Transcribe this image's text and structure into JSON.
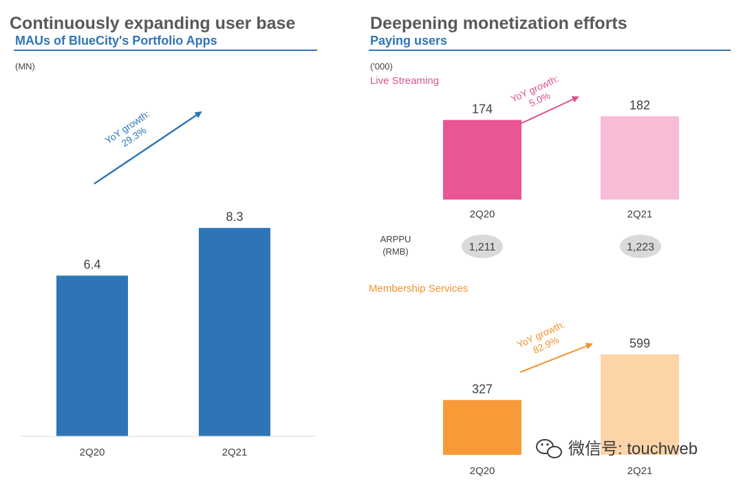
{
  "left": {
    "title": "Continuously expanding user base",
    "subtitle": "MAUs of BlueCity's Portfolio Apps",
    "unit": "(MN)",
    "growth": {
      "line1": "YoY growth:",
      "line2": "29.3%"
    }
  },
  "right": {
    "title": "Deepening monetization efforts",
    "subtitle": "Paying users",
    "unit": "('000)",
    "arppu": {
      "label_line1": "ARPPU",
      "label_line2": "(RMB)",
      "values": [
        "1,211",
        "1,223"
      ]
    },
    "live_growth": {
      "line1": "YoY growth:",
      "line2": "5.0%"
    },
    "member_growth": {
      "line1": "YoY growth:",
      "line2": "82.9%"
    }
  },
  "watermark": "微信号: touchweb",
  "colors": {
    "mau_bar": "#2e75b6",
    "live_2q20": "#ea5594",
    "live_2q21": "#f7bcd6",
    "member_2q20": "#f89a38",
    "member_2q21": "#fcd4a8",
    "live_text": "#e0508f",
    "member_text": "#f0922e",
    "blue_text": "#2e75b6"
  },
  "chart_data": [
    {
      "type": "bar",
      "title": "MAUs of BlueCity's Portfolio Apps",
      "ylabel": "(MN)",
      "categories": [
        "2Q20",
        "2Q21"
      ],
      "values": [
        6.4,
        8.3
      ],
      "value_labels": [
        "6.4",
        "8.3"
      ],
      "ylim": [
        0,
        10
      ],
      "annotation": "YoY growth: 29.3%"
    },
    {
      "type": "bar",
      "title": "Live Streaming",
      "ylabel": "('000)",
      "categories": [
        "2Q20",
        "2Q21"
      ],
      "values": [
        174,
        182
      ],
      "value_labels": [
        "174",
        "182"
      ],
      "annotation": "YoY growth: 5.0%"
    },
    {
      "type": "bar",
      "title": "Membership Services",
      "ylabel": "('000)",
      "categories": [
        "2Q20",
        "2Q21"
      ],
      "values": [
        327,
        599
      ],
      "value_labels": [
        "327",
        "599"
      ],
      "annotation": "YoY growth: 82.9%"
    }
  ]
}
